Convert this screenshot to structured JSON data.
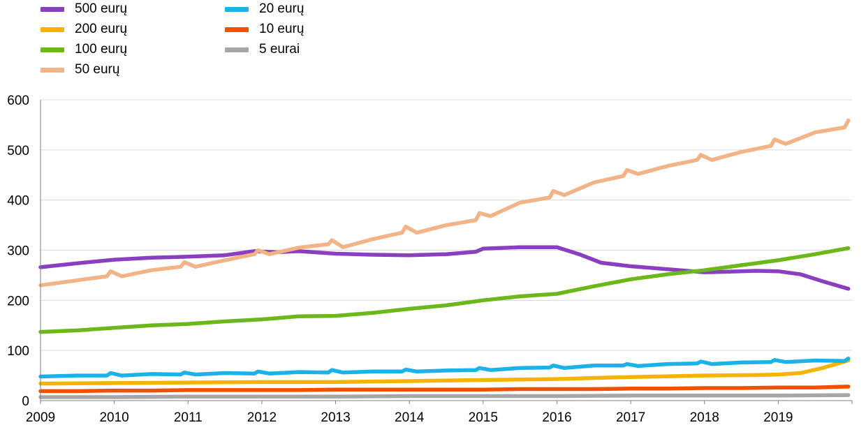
{
  "colors": {
    "axis": "#808080",
    "grid": "#d9d9d9"
  },
  "chart_data": {
    "type": "line",
    "x_unit": "year",
    "xlim": [
      2009,
      2020
    ],
    "ylim": [
      0,
      600
    ],
    "y_ticks": [
      0,
      100,
      200,
      300,
      400,
      500,
      600
    ],
    "x_ticks": [
      "2009",
      "2010",
      "2011",
      "2012",
      "2013",
      "2014",
      "2015",
      "2016",
      "2017",
      "2018",
      "2019"
    ],
    "grid": "horizontal",
    "legend_position": "top-left",
    "series": [
      {
        "name": "500 eurų",
        "color": "#8a3ec0",
        "points": [
          [
            2009.0,
            266
          ],
          [
            2009.5,
            274
          ],
          [
            2010.0,
            281
          ],
          [
            2010.5,
            285
          ],
          [
            2011.0,
            287
          ],
          [
            2011.5,
            290
          ],
          [
            2011.9,
            298
          ],
          [
            2012.2,
            296
          ],
          [
            2012.5,
            298
          ],
          [
            2013.0,
            293
          ],
          [
            2013.5,
            291
          ],
          [
            2014.0,
            290
          ],
          [
            2014.5,
            292
          ],
          [
            2014.9,
            297
          ],
          [
            2015.0,
            303
          ],
          [
            2015.5,
            306
          ],
          [
            2016.0,
            306
          ],
          [
            2016.3,
            292
          ],
          [
            2016.6,
            275
          ],
          [
            2017.0,
            268
          ],
          [
            2017.5,
            262
          ],
          [
            2018.0,
            256
          ],
          [
            2018.3,
            257
          ],
          [
            2018.7,
            259
          ],
          [
            2019.0,
            258
          ],
          [
            2019.3,
            252
          ],
          [
            2019.6,
            238
          ],
          [
            2019.95,
            223
          ]
        ]
      },
      {
        "name": "200 eurų",
        "color": "#f5b400",
        "points": [
          [
            2009.0,
            34
          ],
          [
            2010.0,
            35
          ],
          [
            2011.0,
            36
          ],
          [
            2012.0,
            37
          ],
          [
            2013.0,
            37
          ],
          [
            2014.0,
            39
          ],
          [
            2015.0,
            41
          ],
          [
            2016.0,
            43
          ],
          [
            2017.0,
            47
          ],
          [
            2018.0,
            50
          ],
          [
            2018.7,
            51
          ],
          [
            2019.0,
            52
          ],
          [
            2019.3,
            55
          ],
          [
            2019.6,
            65
          ],
          [
            2019.95,
            80
          ]
        ]
      },
      {
        "name": "100 eurų",
        "color": "#6bb81a",
        "points": [
          [
            2009.0,
            137
          ],
          [
            2009.5,
            140
          ],
          [
            2010.0,
            145
          ],
          [
            2010.5,
            150
          ],
          [
            2011.0,
            153
          ],
          [
            2011.5,
            158
          ],
          [
            2012.0,
            162
          ],
          [
            2012.5,
            168
          ],
          [
            2013.0,
            169
          ],
          [
            2013.5,
            175
          ],
          [
            2014.0,
            183
          ],
          [
            2014.5,
            190
          ],
          [
            2015.0,
            200
          ],
          [
            2015.5,
            208
          ],
          [
            2016.0,
            213
          ],
          [
            2016.5,
            228
          ],
          [
            2017.0,
            242
          ],
          [
            2017.5,
            252
          ],
          [
            2018.0,
            260
          ],
          [
            2018.5,
            270
          ],
          [
            2019.0,
            280
          ],
          [
            2019.5,
            292
          ],
          [
            2019.95,
            304
          ]
        ]
      },
      {
        "name": "50 eurų",
        "color": "#f2b486",
        "points": [
          [
            2009.0,
            230
          ],
          [
            2009.3,
            236
          ],
          [
            2009.6,
            242
          ],
          [
            2009.9,
            248
          ],
          [
            2009.95,
            258
          ],
          [
            2010.1,
            248
          ],
          [
            2010.5,
            260
          ],
          [
            2010.9,
            267
          ],
          [
            2010.95,
            276
          ],
          [
            2011.1,
            267
          ],
          [
            2011.5,
            280
          ],
          [
            2011.9,
            292
          ],
          [
            2011.95,
            300
          ],
          [
            2012.1,
            292
          ],
          [
            2012.5,
            305
          ],
          [
            2012.9,
            312
          ],
          [
            2012.95,
            320
          ],
          [
            2013.1,
            306
          ],
          [
            2013.5,
            322
          ],
          [
            2013.9,
            335
          ],
          [
            2013.95,
            347
          ],
          [
            2014.1,
            335
          ],
          [
            2014.5,
            350
          ],
          [
            2014.9,
            360
          ],
          [
            2014.95,
            374
          ],
          [
            2015.1,
            368
          ],
          [
            2015.5,
            395
          ],
          [
            2015.9,
            405
          ],
          [
            2015.95,
            418
          ],
          [
            2016.1,
            410
          ],
          [
            2016.5,
            435
          ],
          [
            2016.9,
            448
          ],
          [
            2016.95,
            460
          ],
          [
            2017.1,
            452
          ],
          [
            2017.5,
            468
          ],
          [
            2017.9,
            480
          ],
          [
            2017.95,
            490
          ],
          [
            2018.1,
            480
          ],
          [
            2018.5,
            496
          ],
          [
            2018.9,
            508
          ],
          [
            2018.95,
            521
          ],
          [
            2019.1,
            512
          ],
          [
            2019.5,
            535
          ],
          [
            2019.9,
            545
          ],
          [
            2019.95,
            559
          ]
        ]
      },
      {
        "name": "20 eurų",
        "color": "#1ab2e8",
        "points": [
          [
            2009.0,
            48
          ],
          [
            2009.5,
            50
          ],
          [
            2009.9,
            50
          ],
          [
            2009.95,
            55
          ],
          [
            2010.1,
            50
          ],
          [
            2010.5,
            53
          ],
          [
            2010.9,
            52
          ],
          [
            2010.95,
            56
          ],
          [
            2011.1,
            52
          ],
          [
            2011.5,
            55
          ],
          [
            2011.9,
            54
          ],
          [
            2011.95,
            58
          ],
          [
            2012.1,
            54
          ],
          [
            2012.5,
            57
          ],
          [
            2012.9,
            56
          ],
          [
            2012.95,
            61
          ],
          [
            2013.1,
            56
          ],
          [
            2013.5,
            58
          ],
          [
            2013.9,
            58
          ],
          [
            2013.95,
            62
          ],
          [
            2014.1,
            58
          ],
          [
            2014.5,
            60
          ],
          [
            2014.9,
            61
          ],
          [
            2014.95,
            65
          ],
          [
            2015.1,
            61
          ],
          [
            2015.5,
            65
          ],
          [
            2015.9,
            66
          ],
          [
            2015.95,
            70
          ],
          [
            2016.1,
            65
          ],
          [
            2016.5,
            70
          ],
          [
            2016.9,
            70
          ],
          [
            2016.95,
            73
          ],
          [
            2017.1,
            69
          ],
          [
            2017.5,
            73
          ],
          [
            2017.9,
            74
          ],
          [
            2017.95,
            78
          ],
          [
            2018.1,
            73
          ],
          [
            2018.5,
            76
          ],
          [
            2018.9,
            77
          ],
          [
            2018.95,
            81
          ],
          [
            2019.1,
            77
          ],
          [
            2019.5,
            80
          ],
          [
            2019.9,
            79
          ],
          [
            2019.95,
            84
          ]
        ]
      },
      {
        "name": "10 eurų",
        "color": "#f25000",
        "points": [
          [
            2009.0,
            19
          ],
          [
            2009.5,
            19
          ],
          [
            2010.0,
            20
          ],
          [
            2010.5,
            20
          ],
          [
            2011.0,
            21
          ],
          [
            2011.5,
            21
          ],
          [
            2012.0,
            21
          ],
          [
            2012.5,
            21
          ],
          [
            2013.0,
            22
          ],
          [
            2013.5,
            22
          ],
          [
            2014.0,
            22
          ],
          [
            2014.5,
            22
          ],
          [
            2015.0,
            22
          ],
          [
            2015.5,
            23
          ],
          [
            2016.0,
            23
          ],
          [
            2016.5,
            23
          ],
          [
            2017.0,
            24
          ],
          [
            2017.5,
            24
          ],
          [
            2018.0,
            25
          ],
          [
            2018.5,
            25
          ],
          [
            2019.0,
            26
          ],
          [
            2019.5,
            26
          ],
          [
            2019.95,
            28
          ]
        ]
      },
      {
        "name": "5 eurai",
        "color": "#a6a6a6",
        "points": [
          [
            2009.0,
            7
          ],
          [
            2010.0,
            7
          ],
          [
            2011.0,
            8
          ],
          [
            2012.0,
            8
          ],
          [
            2013.0,
            8
          ],
          [
            2014.0,
            9
          ],
          [
            2015.0,
            9
          ],
          [
            2016.0,
            9
          ],
          [
            2017.0,
            10
          ],
          [
            2018.0,
            10
          ],
          [
            2019.0,
            10
          ],
          [
            2019.95,
            11
          ]
        ]
      }
    ]
  }
}
